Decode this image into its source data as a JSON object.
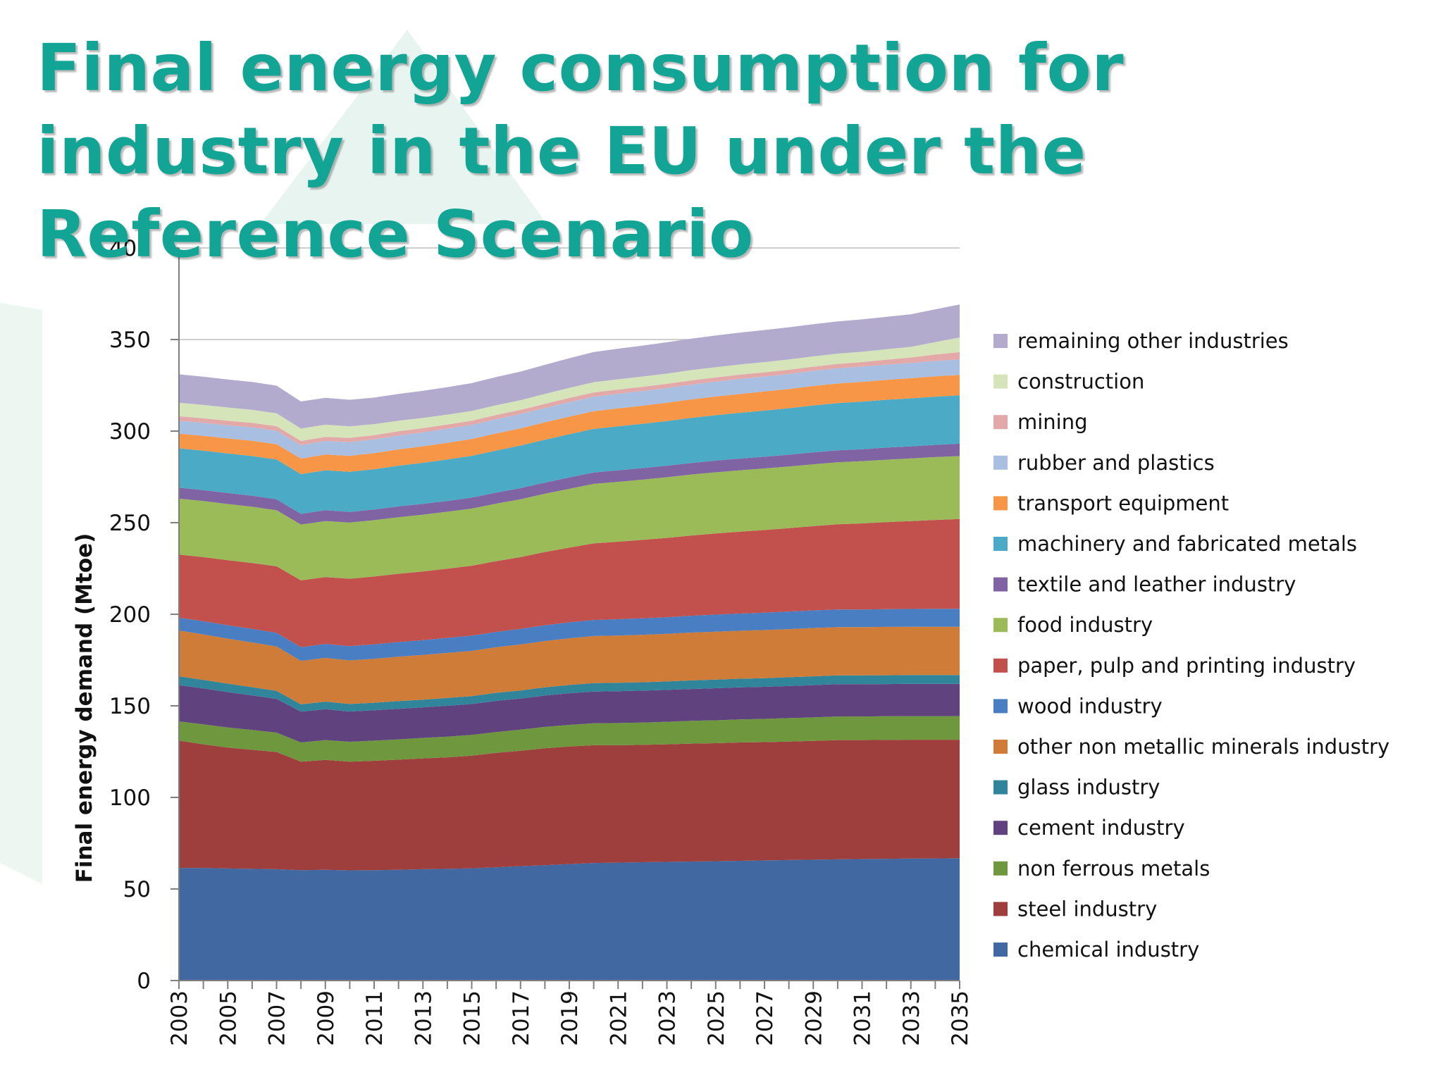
{
  "slide": {
    "title": "Final energy consumption for industry in the EU under the Reference Scenario"
  },
  "colors": {
    "title": "#12a595",
    "decoration": "#e3f1ec"
  },
  "chart_data": {
    "type": "area",
    "stacked": true,
    "title": "",
    "xlabel": "",
    "ylabel": "Final energy demand (Mtoe)",
    "ylim": [
      0,
      400
    ],
    "yticks": [
      0,
      50,
      100,
      150,
      200,
      250,
      300,
      350,
      400
    ],
    "grid": "horizontal",
    "legend_position": "right",
    "x": [
      2003,
      2004,
      2005,
      2006,
      2007,
      2008,
      2009,
      2010,
      2011,
      2012,
      2013,
      2014,
      2015,
      2016,
      2017,
      2018,
      2019,
      2020,
      2021,
      2022,
      2023,
      2024,
      2025,
      2026,
      2027,
      2028,
      2029,
      2030,
      2031,
      2032,
      2033,
      2034,
      2035
    ],
    "x_tick_labels": [
      "2003",
      "2005",
      "2007",
      "2009",
      "2011",
      "2013",
      "2015",
      "2017",
      "2019",
      "2021",
      "2023",
      "2025",
      "2027",
      "2029",
      "2031",
      "2033",
      "2035"
    ],
    "series": [
      {
        "name": "chemical industry",
        "color": "#4168a0",
        "values": [
          61.5,
          61.5,
          61.2,
          61,
          60.8,
          60.3,
          60.5,
          60.2,
          60.3,
          60.5,
          60.8,
          61,
          61.3,
          61.8,
          62.5,
          63,
          63.6,
          64.2,
          64.4,
          64.6,
          64.8,
          65,
          65.2,
          65.4,
          65.6,
          65.8,
          66,
          66.2,
          66.4,
          66.5,
          66.6,
          66.7,
          66.8
        ]
      },
      {
        "name": "steel industry",
        "color": "#9e3f3d",
        "values": [
          69.5,
          67.5,
          66,
          65,
          64,
          59.2,
          60,
          59.3,
          59.7,
          60.1,
          60.5,
          60.9,
          61.5,
          62.5,
          63,
          63.8,
          64.2,
          64.3,
          64.1,
          64.1,
          64.2,
          64.4,
          64.4,
          64.6,
          64.6,
          64.7,
          64.9,
          65.1,
          64.9,
          64.9,
          64.9,
          64.8,
          64.7
        ]
      },
      {
        "name": "non ferrous metals",
        "color": "#6f973e",
        "values": [
          10.5,
          10.9,
          11,
          10.8,
          10.6,
          10.5,
          10.8,
          10.9,
          11,
          11.1,
          11.2,
          11.3,
          11.3,
          11.4,
          11.5,
          11.7,
          11.8,
          12,
          12.1,
          12.2,
          12.3,
          12.4,
          12.5,
          12.6,
          12.7,
          12.8,
          12.8,
          12.9,
          12.9,
          12.9,
          12.9,
          12.9,
          12.9
        ]
      },
      {
        "name": "cement industry",
        "color": "#60437e",
        "values": [
          19.8,
          19.6,
          19.3,
          18.9,
          18.4,
          16.8,
          16.9,
          16.5,
          16.6,
          16.7,
          16.7,
          16.8,
          16.9,
          17,
          17,
          17.1,
          17.3,
          17.3,
          17.4,
          17.4,
          17.4,
          17.4,
          17.5,
          17.5,
          17.5,
          17.5,
          17.6,
          17.6,
          17.6,
          17.6,
          17.6,
          17.6,
          17.6
        ]
      },
      {
        "name": "glass industry",
        "color": "#31859b",
        "values": [
          4.8,
          4.7,
          4.6,
          4.5,
          4.4,
          4,
          4.1,
          4.1,
          4.1,
          4.2,
          4.2,
          4.3,
          4.3,
          4.4,
          4.4,
          4.5,
          4.5,
          4.6,
          4.6,
          4.6,
          4.6,
          4.7,
          4.7,
          4.7,
          4.7,
          4.8,
          4.8,
          4.8,
          4.8,
          4.8,
          4.8,
          4.8,
          4.8
        ]
      },
      {
        "name": "other non metallic minerals industry",
        "color": "#ce7c38",
        "values": [
          25,
          24.8,
          24.6,
          24.4,
          24.2,
          23.7,
          23.9,
          23.8,
          24,
          24.2,
          24.4,
          24.6,
          24.7,
          24.9,
          25.1,
          25.3,
          25.5,
          25.7,
          25.8,
          25.9,
          26,
          26.1,
          26.2,
          26.2,
          26.3,
          26.3,
          26.4,
          26.4,
          26.4,
          26.4,
          26.4,
          26.4,
          26.4
        ]
      },
      {
        "name": "wood industry",
        "color": "#4a7ec2",
        "values": [
          7,
          7.2,
          7.3,
          7.4,
          7.5,
          7.5,
          7.6,
          7.8,
          7.9,
          8,
          8.1,
          8.2,
          8.3,
          8.4,
          8.5,
          8.6,
          8.7,
          8.8,
          8.9,
          9,
          9.1,
          9.2,
          9.3,
          9.4,
          9.5,
          9.6,
          9.6,
          9.6,
          9.6,
          9.7,
          9.7,
          9.8,
          9.8
        ]
      },
      {
        "name": "paper, pulp and printing industry",
        "color": "#c2504d",
        "values": [
          34.5,
          35,
          35.5,
          36,
          36.3,
          36.5,
          36.5,
          36.8,
          37,
          37.3,
          37.5,
          37.8,
          38.2,
          38.6,
          39.2,
          40,
          40.8,
          41.8,
          42.3,
          42.8,
          43.3,
          43.8,
          44.3,
          44.7,
          45.1,
          45.5,
          46,
          46.5,
          47,
          47.5,
          48,
          48.5,
          49
        ]
      },
      {
        "name": "food industry",
        "color": "#9bbb59",
        "values": [
          30.5,
          30.6,
          30.7,
          30.7,
          30.6,
          30.5,
          30.6,
          30.7,
          30.8,
          30.9,
          31,
          31.1,
          31.2,
          31.4,
          31.6,
          31.8,
          32.1,
          32.5,
          32.7,
          32.9,
          33.1,
          33.3,
          33.4,
          33.5,
          33.6,
          33.7,
          33.8,
          33.9,
          34,
          34.1,
          34.2,
          34.3,
          34.4
        ]
      },
      {
        "name": "textile and leather industry",
        "color": "#7f63a2",
        "values": [
          6,
          6,
          6,
          6,
          6,
          5.8,
          5.9,
          5.8,
          5.8,
          5.9,
          5.9,
          5.9,
          6,
          6,
          6.1,
          6.1,
          6.2,
          6.2,
          6.3,
          6.3,
          6.3,
          6.3,
          6.4,
          6.4,
          6.4,
          6.4,
          6.5,
          6.5,
          6.5,
          6.6,
          6.6,
          6.7,
          6.7
        ]
      },
      {
        "name": "machinery and fabricated metals",
        "color": "#4baac6",
        "values": [
          21.5,
          21.5,
          21.6,
          21.7,
          21.7,
          21.7,
          21.8,
          21.9,
          22,
          22.2,
          22.4,
          22.6,
          22.8,
          23,
          23.2,
          23.4,
          23.6,
          23.8,
          24,
          24.2,
          24.4,
          24.6,
          24.8,
          25,
          25.2,
          25.4,
          25.6,
          25.8,
          26,
          26.1,
          26.2,
          26.3,
          26.4
        ]
      },
      {
        "name": "transport equipment",
        "color": "#f79646",
        "values": [
          8,
          8.1,
          8.2,
          8.3,
          8.4,
          8.5,
          8.6,
          8.7,
          8.8,
          8.9,
          9,
          9.1,
          9.2,
          9.3,
          9.4,
          9.5,
          9.6,
          9.7,
          9.8,
          9.9,
          10,
          10.1,
          10.2,
          10.3,
          10.4,
          10.5,
          10.6,
          10.7,
          10.8,
          10.9,
          11,
          11.1,
          11.2
        ]
      },
      {
        "name": "rubber and plastics",
        "color": "#a9bfe1",
        "values": [
          7,
          7.1,
          7.2,
          7.3,
          7.3,
          7.3,
          7.4,
          7.5,
          7.5,
          7.6,
          7.6,
          7.7,
          7.7,
          7.8,
          7.8,
          7.8,
          7.9,
          7.9,
          8,
          8,
          8,
          8.1,
          8.1,
          8.2,
          8.2,
          8.2,
          8.3,
          8.3,
          8.3,
          8.3,
          8.3,
          8.4,
          8.4
        ]
      },
      {
        "name": "mining",
        "color": "#e2a9a8",
        "values": [
          2.5,
          2.5,
          2.5,
          2.5,
          2.5,
          2.3,
          2.3,
          2.3,
          2.3,
          2.3,
          2.3,
          2.3,
          2.3,
          2.3,
          2.3,
          2.3,
          2.3,
          2.3,
          2.3,
          2.3,
          2.3,
          2.3,
          2.3,
          2.3,
          2.3,
          2.3,
          2.3,
          2.4,
          2.5,
          2.7,
          3,
          3.5,
          4
        ]
      },
      {
        "name": "construction",
        "color": "#d6e4b9",
        "values": [
          7.4,
          7.3,
          7.2,
          7.1,
          7,
          6.8,
          6.6,
          6.3,
          6,
          5.8,
          5.6,
          5.4,
          5.3,
          5.3,
          5.3,
          5.4,
          5.5,
          5.6,
          5.6,
          5.6,
          5.6,
          5.6,
          5.6,
          5.6,
          5.6,
          5.6,
          5.6,
          5.6,
          5.6,
          5.7,
          5.8,
          6.8,
          8
        ]
      },
      {
        "name": "remaining other industries",
        "color": "#b3abcd",
        "values": [
          15.5,
          15.4,
          15.3,
          15.2,
          15.1,
          14.8,
          14.7,
          14.5,
          14.5,
          14.6,
          14.8,
          15,
          15.2,
          15.4,
          15.6,
          15.9,
          16.2,
          16.5,
          16.7,
          16.9,
          17.1,
          17.2,
          17.3,
          17.4,
          17.5,
          17.6,
          17.6,
          17.6,
          17.7,
          17.7,
          17.8,
          17.9,
          18
        ]
      }
    ]
  }
}
